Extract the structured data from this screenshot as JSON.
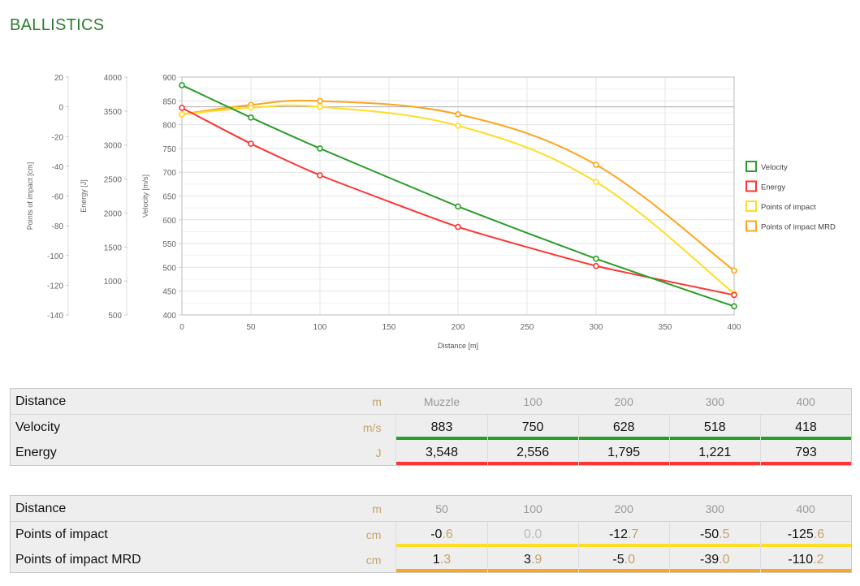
{
  "title": "BALLISTICS",
  "colors": {
    "velocity": "#2a9d2a",
    "energy": "#ff3333",
    "poi": "#ffdd22",
    "poi_mrd": "#ffa41c"
  },
  "chart_data": {
    "type": "line",
    "x": [
      0,
      50,
      100,
      200,
      300,
      400
    ],
    "xlabel": "Distance [m]",
    "xlim": [
      0,
      400
    ],
    "xticks": [
      "0",
      "50",
      "100",
      "150",
      "200",
      "250",
      "300",
      "350",
      "400"
    ],
    "axes": {
      "velocity": {
        "label": "Velocity [m/s]",
        "range": [
          400,
          900
        ],
        "ticks": [
          "400",
          "450",
          "500",
          "550",
          "600",
          "650",
          "700",
          "750",
          "800",
          "850",
          "900"
        ]
      },
      "energy": {
        "label": "Energy [J]",
        "range": [
          500,
          4000
        ],
        "ticks": [
          "500",
          "1000",
          "1500",
          "2000",
          "2500",
          "3000",
          "3500",
          "4000"
        ]
      },
      "poi": {
        "label": "Points of impact [cm]",
        "range": [
          -140,
          20
        ],
        "ticks": [
          "-140",
          "-120",
          "-100",
          "-80",
          "-60",
          "-40",
          "-20",
          "0",
          "20"
        ]
      }
    },
    "series": [
      {
        "name": "Velocity",
        "axis": "velocity",
        "color": "#2a9d2a",
        "values": [
          883,
          815,
          750,
          628,
          518,
          418
        ]
      },
      {
        "name": "Energy",
        "axis": "energy",
        "color": "#ff3333",
        "values": [
          3548,
          3020,
          2556,
          1795,
          1221,
          793
        ]
      },
      {
        "name": "Points of impact",
        "axis": "poi",
        "color": "#ffdd22",
        "values": [
          -5,
          -0.6,
          0.0,
          -12.7,
          -50.5,
          -125.6
        ]
      },
      {
        "name": "Points of impact MRD",
        "axis": "poi",
        "color": "#ffa41c",
        "values": [
          -5,
          1.3,
          3.9,
          -5.0,
          -39.0,
          -110.2
        ]
      }
    ],
    "grid": true,
    "legend": "right"
  },
  "table1": {
    "header": {
      "label": "Distance",
      "unit": "m",
      "cols": [
        "Muzzle",
        "100",
        "200",
        "300",
        "400"
      ]
    },
    "rows": [
      {
        "label": "Velocity",
        "unit": "m/s",
        "values": [
          "883",
          "750",
          "628",
          "518",
          "418"
        ]
      },
      {
        "label": "Energy",
        "unit": "J",
        "values": [
          "3,548",
          "2,556",
          "1,795",
          "1,221",
          "793"
        ]
      }
    ]
  },
  "table2": {
    "header": {
      "label": "Distance",
      "unit": "m",
      "cols": [
        "50",
        "100",
        "200",
        "300",
        "400"
      ]
    },
    "rows": [
      {
        "label": "Points of impact",
        "unit": "cm",
        "values": [
          [
            "-0",
            ".6"
          ],
          [
            "0",
            ".0"
          ],
          [
            "-12",
            ".7"
          ],
          [
            "-50",
            ".5"
          ],
          [
            "-125",
            ".6"
          ]
        ]
      },
      {
        "label": "Points of impact MRD",
        "unit": "cm",
        "values": [
          [
            "1",
            ".3"
          ],
          [
            "3",
            ".9"
          ],
          [
            "-5",
            ".0"
          ],
          [
            "-39",
            ".0"
          ],
          [
            "-110",
            ".2"
          ]
        ]
      }
    ]
  }
}
